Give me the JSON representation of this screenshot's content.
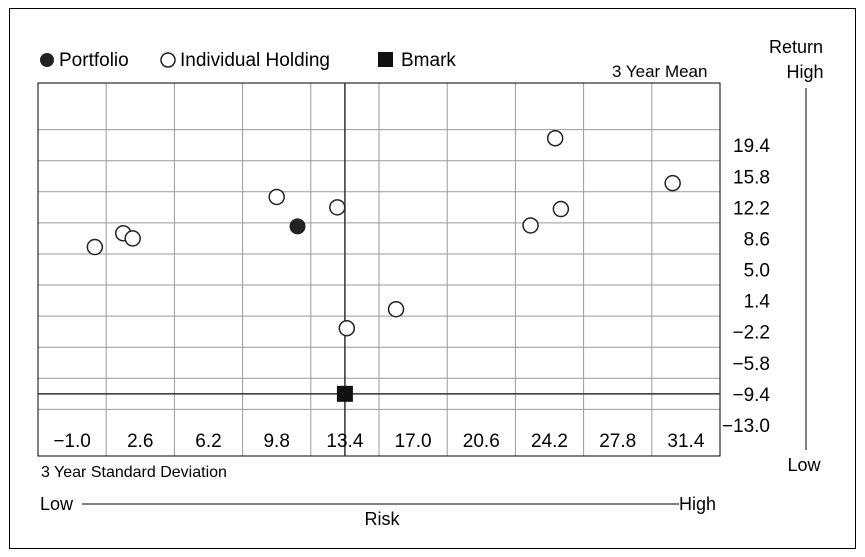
{
  "chart_data": {
    "type": "scatter",
    "title": "",
    "legend": {
      "placement": "top-left",
      "items": [
        {
          "label": "Portfolio",
          "marker": "filled-circle"
        },
        {
          "label": "Individual Holding",
          "marker": "open-circle"
        },
        {
          "label": "Bmark",
          "marker": "filled-square"
        }
      ]
    },
    "xlabel": "3 Year Standard Deviation",
    "ylabel": "3 Year Mean",
    "y_axis_title": "Return",
    "y_high_label": "High",
    "y_low_label": "Low",
    "x_axis_title": "Risk",
    "x_low_label": "Low",
    "x_high_label": "High",
    "x_ticks": [
      "-1.0",
      "2.6",
      "6.2",
      "9.8",
      "13.4",
      "17.0",
      "20.6",
      "24.2",
      "27.8",
      "31.4"
    ],
    "y_ticks": [
      "19.4",
      "15.8",
      "12.2",
      "8.6",
      "5.0",
      "1.4",
      "-2.2",
      "-5.8",
      "-9.4",
      "-13.0"
    ],
    "xlim": [
      -2.8,
      33.2
    ],
    "ylim": [
      -16.6,
      26.6
    ],
    "grid": true,
    "reference_lines": {
      "x": 13.4,
      "y": -9.4
    },
    "series": [
      {
        "name": "Portfolio",
        "marker": "filled-circle",
        "points": [
          {
            "x": 10.9,
            "y": 10.0
          }
        ]
      },
      {
        "name": "Individual Holding",
        "marker": "open-circle",
        "points": [
          {
            "x": 0.2,
            "y": 7.6
          },
          {
            "x": 1.7,
            "y": 9.2
          },
          {
            "x": 2.2,
            "y": 8.6
          },
          {
            "x": 9.8,
            "y": 13.4
          },
          {
            "x": 13.0,
            "y": 12.2
          },
          {
            "x": 13.5,
            "y": -1.8
          },
          {
            "x": 16.1,
            "y": 0.4
          },
          {
            "x": 23.2,
            "y": 10.1
          },
          {
            "x": 24.5,
            "y": 20.2
          },
          {
            "x": 24.8,
            "y": 12.0
          },
          {
            "x": 30.7,
            "y": 15.0
          }
        ]
      },
      {
        "name": "Bmark",
        "marker": "filled-square",
        "points": [
          {
            "x": 13.4,
            "y": -9.4
          }
        ]
      }
    ]
  }
}
